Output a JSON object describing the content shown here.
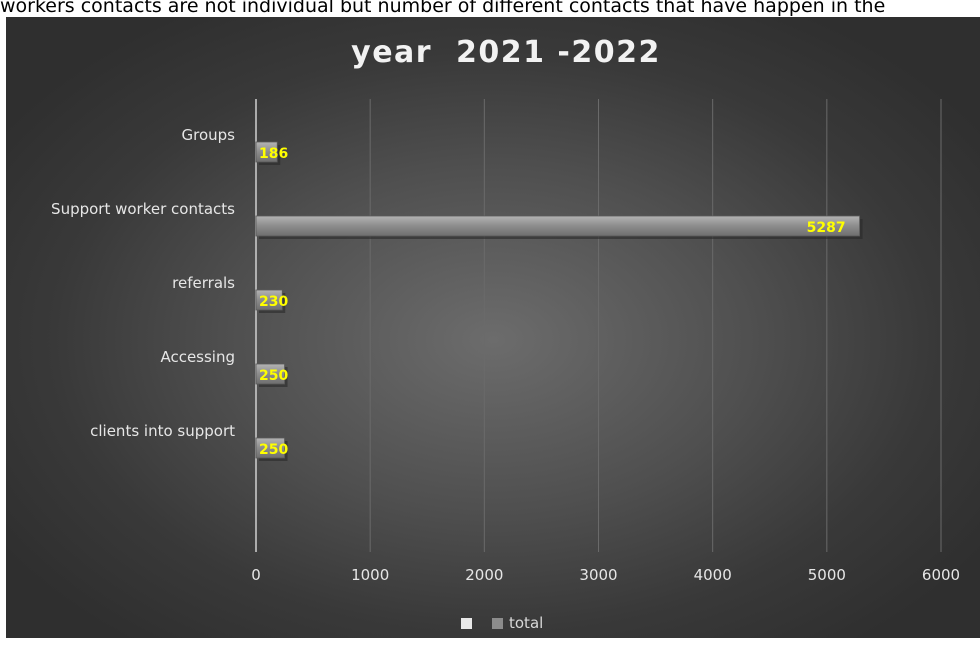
{
  "caption": "workers contacts are not individual but number of different contacts that have happen in the",
  "chart_data": {
    "type": "bar",
    "orientation": "horizontal",
    "title": "year  2021 -2022",
    "categories": [
      "Groups",
      "Support worker contacts",
      "referrals",
      "Accessing",
      "clients into support"
    ],
    "series": [
      {
        "name": "total",
        "values": [
          186,
          5287,
          230,
          250,
          250
        ]
      }
    ],
    "x_ticks": [
      "0",
      "1000",
      "2000",
      "3000",
      "4000",
      "5000",
      "6000"
    ],
    "xlim": [
      0,
      6000
    ],
    "grid": true,
    "data_labels": true,
    "legend_position": "bottom",
    "colors": {
      "bar": "#8c8c8c",
      "data_label": "#ffff00",
      "grid": "#6a6a6a",
      "axis": "#d0d0d0",
      "text": "#e6e6e6"
    }
  }
}
